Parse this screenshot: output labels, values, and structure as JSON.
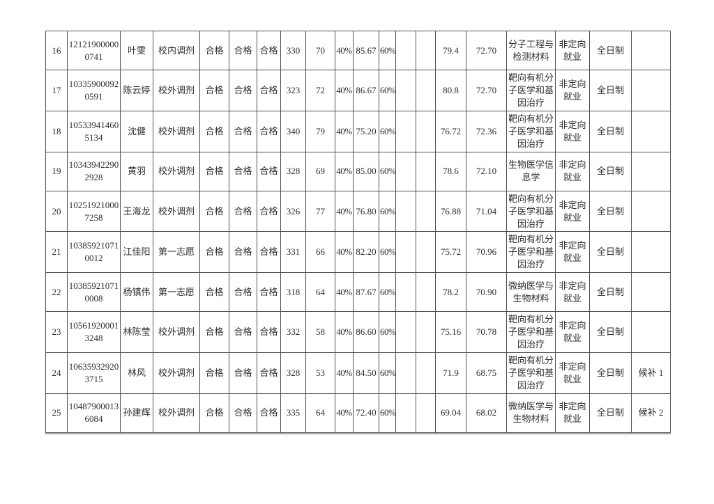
{
  "page": {
    "background_color": "#ffffff",
    "text_color": "#2e2e2e",
    "table_border_color": "#4f4f4f",
    "table_shadow_color": "#ababab"
  },
  "table": {
    "column_keys": [
      "seq",
      "candidate_id",
      "name",
      "volunteer_type",
      "qualified_1",
      "qualified_2",
      "qualified_3",
      "initial_score",
      "retest_score",
      "initial_weight",
      "interview_score",
      "interview_weight",
      "blank_1",
      "blank_2",
      "weighted_score",
      "final_score",
      "major",
      "employment_type",
      "study_mode",
      "remark"
    ],
    "rows": [
      {
        "seq": "16",
        "candidate_id": "121219000000741",
        "name": "叶雯",
        "volunteer_type": "校内调剂",
        "qualified_1": "合格",
        "qualified_2": "合格",
        "qualified_3": "合格",
        "initial_score": "330",
        "retest_score": "70",
        "initial_weight": "40%",
        "interview_score": "85.67",
        "interview_weight": "60%",
        "blank_1": "",
        "blank_2": "",
        "weighted_score": "79.4",
        "final_score": "72.70",
        "major": "分子工程与检测材料",
        "employment_type": "非定向就业",
        "study_mode": "全日制",
        "remark": ""
      },
      {
        "seq": "17",
        "candidate_id": "103359000920591",
        "name": "陈云婷",
        "volunteer_type": "校外调剂",
        "qualified_1": "合格",
        "qualified_2": "合格",
        "qualified_3": "合格",
        "initial_score": "323",
        "retest_score": "72",
        "initial_weight": "40%",
        "interview_score": "86.67",
        "interview_weight": "60%",
        "blank_1": "",
        "blank_2": "",
        "weighted_score": "80.8",
        "final_score": "72.70",
        "major": "靶向有机分子医学和基因治疗",
        "employment_type": "非定向就业",
        "study_mode": "全日制",
        "remark": ""
      },
      {
        "seq": "18",
        "candidate_id": "105339414605134",
        "name": "沈健",
        "volunteer_type": "校外调剂",
        "qualified_1": "合格",
        "qualified_2": "合格",
        "qualified_3": "合格",
        "initial_score": "340",
        "retest_score": "79",
        "initial_weight": "40%",
        "interview_score": "75.20",
        "interview_weight": "60%",
        "blank_1": "",
        "blank_2": "",
        "weighted_score": "76.72",
        "final_score": "72.36",
        "major": "靶向有机分子医学和基因治疗",
        "employment_type": "非定向就业",
        "study_mode": "全日制",
        "remark": ""
      },
      {
        "seq": "19",
        "candidate_id": "103439422902928",
        "name": "黄羽",
        "volunteer_type": "校外调剂",
        "qualified_1": "合格",
        "qualified_2": "合格",
        "qualified_3": "合格",
        "initial_score": "328",
        "retest_score": "69",
        "initial_weight": "40%",
        "interview_score": "85.00",
        "interview_weight": "60%",
        "blank_1": "",
        "blank_2": "",
        "weighted_score": "78.6",
        "final_score": "72.10",
        "major": "生物医学信息学",
        "employment_type": "非定向就业",
        "study_mode": "全日制",
        "remark": ""
      },
      {
        "seq": "20",
        "candidate_id": "102519210007258",
        "name": "王海龙",
        "volunteer_type": "校外调剂",
        "qualified_1": "合格",
        "qualified_2": "合格",
        "qualified_3": "合格",
        "initial_score": "326",
        "retest_score": "77",
        "initial_weight": "40%",
        "interview_score": "76.80",
        "interview_weight": "60%",
        "blank_1": "",
        "blank_2": "",
        "weighted_score": "76.88",
        "final_score": "71.04",
        "major": "靶向有机分子医学和基因治疗",
        "employment_type": "非定向就业",
        "study_mode": "全日制",
        "remark": ""
      },
      {
        "seq": "21",
        "candidate_id": "103859210710012",
        "name": "江佳阳",
        "volunteer_type": "第一志愿",
        "qualified_1": "合格",
        "qualified_2": "合格",
        "qualified_3": "合格",
        "initial_score": "331",
        "retest_score": "66",
        "initial_weight": "40%",
        "interview_score": "82.20",
        "interview_weight": "60%",
        "blank_1": "",
        "blank_2": "",
        "weighted_score": "75.72",
        "final_score": "70.96",
        "major": "靶向有机分子医学和基因治疗",
        "employment_type": "非定向就业",
        "study_mode": "全日制",
        "remark": ""
      },
      {
        "seq": "22",
        "candidate_id": "103859210710008",
        "name": "杨镇伟",
        "volunteer_type": "第一志愿",
        "qualified_1": "合格",
        "qualified_2": "合格",
        "qualified_3": "合格",
        "initial_score": "318",
        "retest_score": "64",
        "initial_weight": "40%",
        "interview_score": "87.67",
        "interview_weight": "60%",
        "blank_1": "",
        "blank_2": "",
        "weighted_score": "78.2",
        "final_score": "70.90",
        "major": "微纳医学与生物材料",
        "employment_type": "非定向就业",
        "study_mode": "全日制",
        "remark": ""
      },
      {
        "seq": "23",
        "candidate_id": "105619200013248",
        "name": "林陈莹",
        "volunteer_type": "校外调剂",
        "qualified_1": "合格",
        "qualified_2": "合格",
        "qualified_3": "合格",
        "initial_score": "332",
        "retest_score": "58",
        "initial_weight": "40%",
        "interview_score": "86.60",
        "interview_weight": "60%",
        "blank_1": "",
        "blank_2": "",
        "weighted_score": "75.16",
        "final_score": "70.78",
        "major": "靶向有机分子医学和基因治疗",
        "employment_type": "非定向就业",
        "study_mode": "全日制",
        "remark": ""
      },
      {
        "seq": "24",
        "candidate_id": "106359329203715",
        "name": "林风",
        "volunteer_type": "校外调剂",
        "qualified_1": "合格",
        "qualified_2": "合格",
        "qualified_3": "合格",
        "initial_score": "328",
        "retest_score": "53",
        "initial_weight": "40%",
        "interview_score": "84.50",
        "interview_weight": "60%",
        "blank_1": "",
        "blank_2": "",
        "weighted_score": "71.9",
        "final_score": "68.75",
        "major": "靶向有机分子医学和基因治疗",
        "employment_type": "非定向就业",
        "study_mode": "全日制",
        "remark": "候补 1"
      },
      {
        "seq": "25",
        "candidate_id": "104879000136084",
        "name": "孙建辉",
        "volunteer_type": "校外调剂",
        "qualified_1": "合格",
        "qualified_2": "合格",
        "qualified_3": "合格",
        "initial_score": "335",
        "retest_score": "64",
        "initial_weight": "40%",
        "interview_score": "72.40",
        "interview_weight": "60%",
        "blank_1": "",
        "blank_2": "",
        "weighted_score": "69.04",
        "final_score": "68.02",
        "major": "微纳医学与生物材料",
        "employment_type": "非定向就业",
        "study_mode": "全日制",
        "remark": "候补 2"
      }
    ]
  }
}
